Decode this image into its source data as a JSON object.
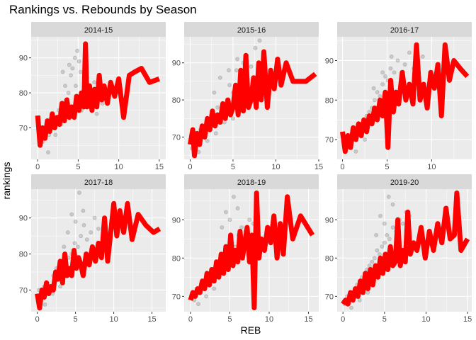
{
  "chart_data": {
    "type": "scatter",
    "title": "Rankings vs. Rebounds by Season",
    "xlabel": "REB",
    "ylabel": "rankings",
    "grid": true,
    "line_color": "#ff0000",
    "point_color": "#333333",
    "panel_background": "#ebebeb",
    "strip_background": "#d9d9d9",
    "panels": [
      {
        "season": "2014-15",
        "xlim": [
          -0.8,
          15.8
        ],
        "ylim": [
          61,
          96
        ],
        "xticks": [
          0,
          5,
          10,
          15
        ],
        "yticks": [
          70,
          80,
          90
        ],
        "line": {
          "x": [
            0,
            0.3,
            0.6,
            0.9,
            1.2,
            1.5,
            1.8,
            2.1,
            2.4,
            2.7,
            3.0,
            3.3,
            3.6,
            3.9,
            4.2,
            4.5,
            4.8,
            5.1,
            5.4,
            5.7,
            5.9,
            6.1,
            6.4,
            6.7,
            7.0,
            7.3,
            7.6,
            7.9,
            8.2,
            8.6,
            9.0,
            9.5,
            10.0,
            10.6,
            11.3,
            12.0,
            12.8,
            13.8,
            15.0
          ],
          "y": [
            73.5,
            65,
            70,
            67,
            72,
            69,
            74,
            70,
            73,
            71,
            77,
            72,
            78,
            73,
            76,
            73,
            79,
            75,
            80,
            76,
            94,
            76,
            82,
            75,
            81,
            76,
            85,
            78,
            82,
            77,
            83,
            79,
            84,
            73,
            85,
            86,
            87,
            83,
            84
          ]
        },
        "points": {
          "x": [
            0.1,
            0.4,
            0.8,
            1.1,
            1.4,
            1.7,
            2.0,
            2.3,
            2.6,
            2.9,
            3.2,
            3.5,
            3.8,
            4.1,
            4.4,
            4.7,
            5.0,
            5.3,
            5.6,
            6.0,
            6.3,
            6.7,
            7.0,
            7.5,
            8.0,
            8.6,
            0.6,
            1.3,
            2.2,
            3.1,
            3.9,
            4.6,
            5.4,
            6.2,
            7.3,
            2.7,
            3.4,
            4.3,
            5.1,
            4.9
          ],
          "y": [
            70,
            67,
            69,
            71,
            68,
            73,
            70,
            72,
            75,
            71,
            77,
            74,
            80,
            85,
            76,
            82,
            78,
            86,
            80,
            84,
            81,
            79,
            83,
            78,
            77,
            80,
            66,
            63,
            68,
            86,
            88,
            90,
            75,
            78,
            74,
            73,
            82,
            87,
            89,
            92
          ]
        }
      },
      {
        "season": "2015-16",
        "xlim": [
          -0.7,
          15.0
        ],
        "ylim": [
          64,
          97
        ],
        "xticks": [
          0,
          5,
          10,
          15
        ],
        "yticks": [
          70,
          80,
          90
        ],
        "line": {
          "x": [
            0,
            0.3,
            0.5,
            0.8,
            1.1,
            1.4,
            1.7,
            2.0,
            2.3,
            2.6,
            2.9,
            3.2,
            3.5,
            3.8,
            4.1,
            4.4,
            4.7,
            5.0,
            5.3,
            5.6,
            5.9,
            6.2,
            6.5,
            6.8,
            7.1,
            7.4,
            7.7,
            8.0,
            8.3,
            8.6,
            9.0,
            9.4,
            9.8,
            10.2,
            10.6,
            11.2,
            12.0,
            13.5,
            14.6
          ],
          "y": [
            68,
            72,
            65,
            71,
            68,
            73,
            70,
            75,
            72,
            77,
            73,
            76,
            74,
            79,
            75,
            80,
            76,
            78,
            84,
            76,
            88,
            77,
            92,
            78,
            80,
            86,
            78,
            90,
            80,
            93,
            78,
            88,
            83,
            91,
            84,
            90,
            85,
            85,
            87
          ]
        },
        "points": {
          "x": [
            0.2,
            0.5,
            0.9,
            1.2,
            1.6,
            1.9,
            2.2,
            2.5,
            2.9,
            3.2,
            3.6,
            3.9,
            4.3,
            4.6,
            5.0,
            5.4,
            5.8,
            6.2,
            6.6,
            7.1,
            7.6,
            8.1,
            1.0,
            2.0,
            3.0,
            4.0,
            5.0,
            6.0,
            3.5,
            4.5,
            5.5,
            2.8
          ],
          "y": [
            67,
            70,
            68,
            72,
            71,
            74,
            73,
            76,
            75,
            78,
            77,
            79,
            80,
            84,
            82,
            88,
            86,
            90,
            92,
            89,
            94,
            96,
            66,
            69,
            71,
            74,
            75,
            78,
            86,
            88,
            91,
            82
          ]
        }
      },
      {
        "season": "2016-17",
        "xlim": [
          -0.6,
          14.5
        ],
        "ylim": [
          65,
          96
        ],
        "xticks": [
          0,
          5,
          10
        ],
        "yticks": [
          70,
          80,
          90
        ],
        "line": {
          "x": [
            0,
            0.3,
            0.6,
            0.9,
            1.2,
            1.5,
            1.8,
            2.1,
            2.4,
            2.7,
            3.0,
            3.3,
            3.6,
            3.9,
            4.2,
            4.5,
            4.8,
            5.1,
            5.4,
            5.7,
            6.0,
            6.3,
            6.7,
            7.1,
            7.5,
            7.9,
            8.3,
            8.7,
            9.1,
            9.5,
            9.9,
            10.3,
            10.7,
            11.1,
            11.5,
            12.0,
            12.5,
            13.2,
            14.0
          ],
          "y": [
            72,
            67,
            71,
            68,
            73,
            70,
            74,
            71,
            75,
            72,
            76,
            74,
            78,
            75,
            80,
            76,
            82,
            68,
            85,
            77,
            82,
            79,
            87,
            80,
            84,
            79,
            94,
            80,
            84,
            78,
            87,
            83,
            89,
            76,
            94,
            85,
            90,
            88,
            86
          ]
        },
        "points": {
          "x": [
            0.2,
            0.5,
            0.8,
            1.1,
            1.4,
            1.8,
            2.1,
            2.4,
            2.7,
            3.0,
            3.3,
            3.6,
            3.9,
            4.2,
            4.5,
            4.8,
            5.1,
            5.4,
            5.8,
            6.2,
            6.6,
            7.0,
            7.5,
            8.0,
            8.5,
            9.0,
            1.5,
            2.5,
            3.5,
            4.5,
            5.5
          ],
          "y": [
            69,
            68,
            71,
            70,
            72,
            73,
            74,
            75,
            76,
            77,
            78,
            80,
            82,
            81,
            84,
            86,
            85,
            88,
            87,
            90,
            86,
            89,
            92,
            88,
            90,
            91,
            67,
            70,
            83,
            87,
            91
          ]
        }
      },
      {
        "season": "2017-18",
        "xlim": [
          -0.8,
          16.8
        ],
        "ylim": [
          64,
          98
        ],
        "xticks": [
          0,
          5,
          10,
          15
        ],
        "yticks": [
          70,
          80,
          90
        ],
        "line": {
          "x": [
            0,
            0.3,
            0.6,
            0.9,
            1.2,
            1.5,
            1.8,
            2.1,
            2.4,
            2.7,
            3.0,
            3.3,
            3.6,
            3.9,
            4.2,
            4.5,
            4.8,
            5.1,
            5.4,
            5.7,
            6.0,
            6.4,
            6.8,
            7.2,
            7.6,
            8.0,
            8.4,
            8.8,
            9.2,
            9.6,
            10.0,
            10.4,
            10.8,
            11.3,
            11.8,
            12.4,
            13.2,
            14.2,
            15.2,
            16.0
          ],
          "y": [
            69,
            65,
            70,
            68,
            72,
            69,
            71,
            70,
            75,
            73,
            78,
            72,
            80,
            74,
            76,
            74,
            81,
            76,
            79,
            77,
            74,
            80,
            77,
            82,
            78,
            83,
            79,
            90,
            78,
            86,
            94,
            85,
            92,
            86,
            94,
            84,
            91,
            88,
            86,
            87
          ]
        },
        "points": {
          "x": [
            0.2,
            0.5,
            0.9,
            1.3,
            1.7,
            2.1,
            2.5,
            2.9,
            3.3,
            3.7,
            4.1,
            4.5,
            4.9,
            5.3,
            5.7,
            6.1,
            6.5,
            7.0,
            7.5,
            8.0,
            1.0,
            2.0,
            3.0,
            4.0,
            5.0,
            6.0,
            3.5,
            4.5,
            5.5
          ],
          "y": [
            70,
            68,
            71,
            72,
            70,
            74,
            76,
            75,
            78,
            77,
            79,
            80,
            83,
            82,
            85,
            88,
            84,
            86,
            90,
            87,
            66,
            69,
            71,
            86,
            89,
            92,
            82,
            91,
            97
          ]
        }
      },
      {
        "season": "2018-19",
        "xlim": [
          -0.8,
          16.3
        ],
        "ylim": [
          66,
          98
        ],
        "xticks": [
          0,
          5,
          10,
          15
        ],
        "yticks": [
          70,
          80,
          90
        ],
        "line": {
          "x": [
            0,
            0.3,
            0.6,
            0.9,
            1.2,
            1.5,
            1.8,
            2.1,
            2.4,
            2.7,
            3.0,
            3.3,
            3.6,
            3.9,
            4.2,
            4.5,
            4.8,
            5.1,
            5.4,
            5.7,
            6.0,
            6.3,
            6.6,
            6.9,
            7.2,
            7.5,
            7.8,
            8.1,
            8.4,
            8.7,
            9.0,
            9.4,
            9.8,
            10.2,
            10.6,
            11.0,
            11.4,
            11.8,
            12.3,
            13.0,
            14.0,
            15.5
          ],
          "y": [
            69,
            71,
            70,
            72,
            71,
            74,
            72,
            76,
            73,
            77,
            74,
            79,
            75,
            81,
            76,
            83,
            77,
            86,
            78,
            82,
            79,
            87,
            80,
            84,
            88,
            79,
            86,
            67,
            97,
            80,
            85,
            82,
            88,
            84,
            91,
            80,
            89,
            81,
            96,
            85,
            91,
            86
          ]
        },
        "points": {
          "x": [
            0.2,
            0.5,
            0.9,
            1.3,
            1.7,
            2.1,
            2.5,
            2.9,
            3.3,
            3.7,
            4.1,
            4.5,
            4.9,
            5.3,
            5.7,
            6.1,
            6.5,
            7.0,
            7.5,
            8.0,
            8.5,
            1.0,
            2.0,
            3.0,
            4.0,
            5.0,
            6.0,
            4.5,
            5.5
          ],
          "y": [
            70,
            69,
            72,
            71,
            73,
            74,
            75,
            76,
            77,
            79,
            80,
            82,
            81,
            84,
            83,
            86,
            88,
            87,
            90,
            89,
            91,
            68,
            70,
            72,
            88,
            90,
            93,
            92,
            96
          ]
        }
      },
      {
        "season": "2019-20",
        "xlim": [
          -0.7,
          15.5
        ],
        "ylim": [
          66,
          98
        ],
        "xticks": [
          0,
          5,
          10,
          15
        ],
        "yticks": [
          70,
          80,
          90
        ],
        "line": {
          "x": [
            0,
            0.3,
            0.6,
            0.9,
            1.2,
            1.5,
            1.8,
            2.1,
            2.4,
            2.7,
            3.0,
            3.3,
            3.6,
            3.9,
            4.2,
            4.5,
            4.8,
            5.1,
            5.4,
            5.7,
            6.0,
            6.3,
            6.6,
            6.9,
            7.2,
            7.5,
            7.8,
            8.1,
            8.5,
            8.9,
            9.4,
            9.9,
            10.4,
            10.9,
            11.4,
            11.9,
            12.4,
            12.9,
            13.4,
            13.7,
            14.2,
            15.0
          ],
          "y": [
            68,
            69,
            68,
            71,
            69,
            72,
            70,
            74,
            71,
            76,
            72,
            77,
            73,
            78,
            75,
            80,
            76,
            81,
            77,
            83,
            78,
            79,
            90,
            78,
            82,
            79,
            92,
            81,
            84,
            82,
            88,
            80,
            87,
            82,
            89,
            84,
            93,
            85,
            86,
            97,
            82,
            85
          ]
        },
        "points": {
          "x": [
            0.2,
            0.5,
            0.8,
            1.1,
            1.4,
            1.7,
            2.0,
            2.3,
            2.6,
            2.9,
            3.2,
            3.5,
            3.8,
            4.1,
            4.4,
            4.7,
            5.0,
            5.3,
            5.6,
            6.0,
            6.4,
            6.8,
            7.2,
            7.6,
            8.0,
            1.0,
            2.0,
            3.0,
            4.0,
            5.0,
            6.0,
            4.5,
            5.5
          ],
          "y": [
            68,
            70,
            69,
            71,
            72,
            73,
            74,
            75,
            76,
            77,
            78,
            79,
            80,
            82,
            81,
            83,
            84,
            86,
            85,
            88,
            87,
            90,
            89,
            92,
            91,
            67,
            69,
            71,
            86,
            89,
            94,
            91,
            96
          ]
        }
      }
    ]
  }
}
